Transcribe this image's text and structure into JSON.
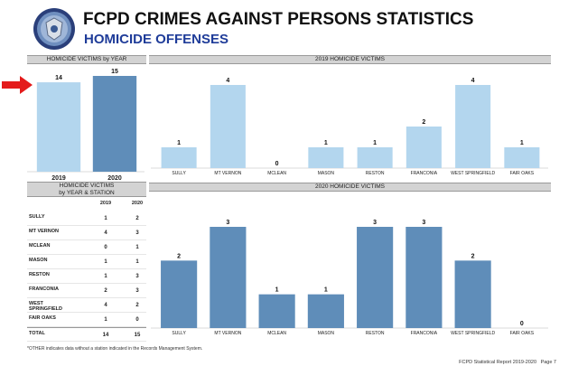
{
  "header": {
    "title": "FCPD CRIMES AGAINST PERSONS STATISTICS",
    "subtitle": "HOMICIDE OFFENSES"
  },
  "colors": {
    "light_bar": "#b3d6ee",
    "dark_bar": "#5f8db9",
    "arrow": "#e41b1b",
    "panel_head": "#d3d3d3",
    "subtitle": "#1f3c99"
  },
  "icons": {
    "badge": "police-badge-icon",
    "arrow": "arrow-right-icon"
  },
  "panels": {
    "by_year": "HOMICIDE VICTIMS by YEAR",
    "p2019": "2019 HOMICIDE VICTIMS",
    "station": [
      "HOMICIDE VICTIMS",
      "by YEAR & STATION"
    ],
    "p2020": "2020 HOMICIDE VICTIMS"
  },
  "chart_data": [
    {
      "type": "bar",
      "title": "HOMICIDE VICTIMS by YEAR",
      "categories": [
        "2019",
        "2020"
      ],
      "values": [
        14,
        15
      ],
      "colors": [
        "#b3d6ee",
        "#5f8db9"
      ]
    },
    {
      "type": "bar",
      "title": "2019 HOMICIDE VICTIMS",
      "categories": [
        "SULLY",
        "MT VERNON",
        "MCLEAN",
        "MASON",
        "RESTON",
        "FRANCONIA",
        "WEST SPRINGFIELD",
        "FAIR OAKS"
      ],
      "values": [
        1,
        4,
        0,
        1,
        1,
        2,
        4,
        1
      ],
      "color": "#b3d6ee"
    },
    {
      "type": "table",
      "title": "HOMICIDE VICTIMS by YEAR & STATION",
      "columns": [
        "",
        "2019",
        "2020"
      ],
      "rows": [
        {
          "station": "SULLY",
          "y2019": "1",
          "y2020": "2"
        },
        {
          "station": "MT VERNON",
          "y2019": "4",
          "y2020": "3"
        },
        {
          "station": "MCLEAN",
          "y2019": "0",
          "y2020": "1"
        },
        {
          "station": "MASON",
          "y2019": "1",
          "y2020": "1"
        },
        {
          "station": "RESTON",
          "y2019": "1",
          "y2020": "3"
        },
        {
          "station": "FRANCONIA",
          "y2019": "2",
          "y2020": "3"
        },
        {
          "station": "WEST SPRINGFIELD",
          "y2019": "4",
          "y2020": "2"
        },
        {
          "station": "FAIR OAKS",
          "y2019": "1",
          "y2020": "0"
        },
        {
          "station": "TOTAL",
          "y2019": "14",
          "y2020": "15"
        }
      ]
    },
    {
      "type": "bar",
      "title": "2020 HOMICIDE VICTIMS",
      "categories": [
        "SULLY",
        "MT VERNON",
        "MCLEAN",
        "MASON",
        "RESTON",
        "FRANCONIA",
        "WEST SPRINGFIELD",
        "FAIR OAKS"
      ],
      "values": [
        2,
        3,
        1,
        1,
        3,
        3,
        2,
        0
      ],
      "color": "#5f8db9"
    }
  ],
  "footnote": "*OTHER indicates data without a station indicated in the Records Management System.",
  "footer": {
    "report": "FCPD Statistical Report 2019-2020",
    "page": "Page 7"
  }
}
